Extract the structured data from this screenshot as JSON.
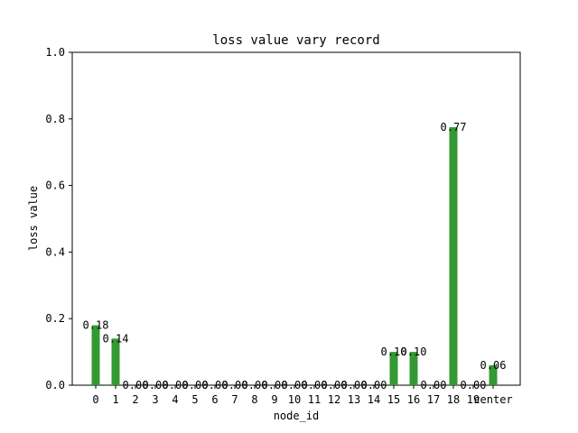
{
  "chart_data": {
    "type": "bar",
    "title": "loss value vary record",
    "xlabel": "node_id",
    "ylabel": "loss value",
    "ylim": [
      0,
      1.0
    ],
    "yticks": [
      "0.0",
      "0.2",
      "0.4",
      "0.6",
      "0.8",
      "1.0"
    ],
    "categories": [
      "0",
      "1",
      "2",
      "3",
      "4",
      "5",
      "6",
      "7",
      "8",
      "9",
      "10",
      "11",
      "12",
      "13",
      "14",
      "15",
      "16",
      "17",
      "18",
      "19",
      "center"
    ],
    "values": [
      0.18,
      0.14,
      0.0,
      0.0,
      0.0,
      0.0,
      0.0,
      0.0,
      0.0,
      0.0,
      0.0,
      0.0,
      0.0,
      0.0,
      0.0,
      0.1,
      0.1,
      0.0,
      0.775,
      0.0,
      0.06
    ],
    "data_labels": [
      "0.18",
      "0.14",
      "0.00",
      "0.00",
      "0.00",
      "0.00",
      "0.00",
      "0.00",
      "0.00",
      "0.00",
      "0.00",
      "0.00",
      "0.00",
      "0.00",
      "0.00",
      "0.10",
      "0.10",
      "0.00",
      "0.77",
      "0.00",
      "0.06"
    ],
    "bar_color": "#339933",
    "grid": false,
    "legend": "none"
  }
}
